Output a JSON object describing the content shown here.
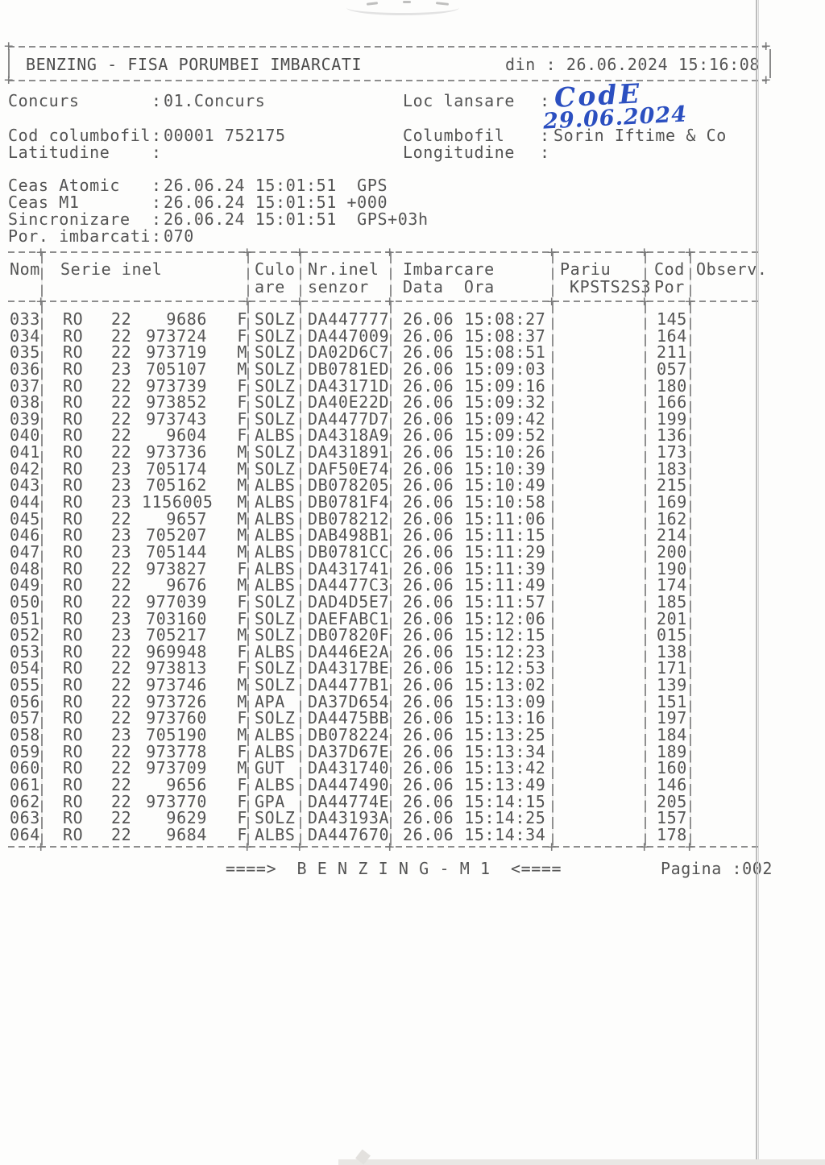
{
  "header": {
    "title": "BENZING - FISA PORUMBEI IMBARCATI",
    "printed_at": "din : 26.06.2024 15:16:08"
  },
  "glyphs": {
    "colon": ":",
    "plus": "+"
  },
  "meta": {
    "concurs_label": "Concurs",
    "concurs_value": "01.Concurs",
    "loc_lansare_label": "Loc lansare",
    "handwritten_code": "CodE",
    "handwritten_date": "29.06.2024",
    "cod_columbofil_label": "Cod columbofil",
    "cod_columbofil_value": "00001 752175",
    "columbofil_label": "Columbofil",
    "columbofil_value": "Sorin Iftime & Co",
    "latitudine_label": "Latitudine",
    "longitudine_label": "Longitudine",
    "ceas_atomic_label": "Ceas Atomic",
    "ceas_atomic_value": "26.06.24 15:01:51  GPS",
    "ceas_m1_label": "Ceas M1",
    "ceas_m1_value": "26.06.24 15:01:51 +000",
    "sincronizare_label": "Sincronizare",
    "sincronizare_value": "26.06.24 15:01:51  GPS+03h",
    "por_imbarcati_label": "Por. imbarcati",
    "por_imbarcati_value": "070"
  },
  "table": {
    "headers": {
      "nom": "Nom",
      "serie": "Serie inel",
      "culo_1": "Culo",
      "culo_2": "are",
      "senzor_1": "Nr.inel",
      "senzor_2": "senzor",
      "imb_1": "Imbarcare",
      "imb_2": "Data  Ora",
      "pariu_1": "Pariu",
      "pariu_2": "KPSTS2S3",
      "cod_1": "Cod",
      "cod_2": "Por",
      "observ": "Observ."
    },
    "rows": [
      [
        "033",
        "RO",
        "22",
        "9686",
        "F",
        "SOLZ",
        "DA447777",
        "26.06",
        "15:08:27",
        "",
        "145",
        ""
      ],
      [
        "034",
        "RO",
        "22",
        "973724",
        "F",
        "SOLZ",
        "DA447009",
        "26.06",
        "15:08:37",
        "",
        "164",
        ""
      ],
      [
        "035",
        "RO",
        "22",
        "973719",
        "M",
        "SOLZ",
        "DA02D6C7",
        "26.06",
        "15:08:51",
        "",
        "211",
        ""
      ],
      [
        "036",
        "RO",
        "23",
        "705107",
        "M",
        "SOLZ",
        "DB0781ED",
        "26.06",
        "15:09:03",
        "",
        "057",
        ""
      ],
      [
        "037",
        "RO",
        "22",
        "973739",
        "F",
        "SOLZ",
        "DA43171D",
        "26.06",
        "15:09:16",
        "",
        "180",
        ""
      ],
      [
        "038",
        "RO",
        "22",
        "973852",
        "F",
        "SOLZ",
        "DA40E22D",
        "26.06",
        "15:09:32",
        "",
        "166",
        ""
      ],
      [
        "039",
        "RO",
        "22",
        "973743",
        "F",
        "SOLZ",
        "DA4477D7",
        "26.06",
        "15:09:42",
        "",
        "199",
        ""
      ],
      [
        "040",
        "RO",
        "22",
        "9604",
        "F",
        "ALBS",
        "DA4318A9",
        "26.06",
        "15:09:52",
        "",
        "136",
        ""
      ],
      [
        "041",
        "RO",
        "22",
        "973736",
        "M",
        "SOLZ",
        "DA431891",
        "26.06",
        "15:10:26",
        "",
        "173",
        ""
      ],
      [
        "042",
        "RO",
        "23",
        "705174",
        "M",
        "SOLZ",
        "DAF50E74",
        "26.06",
        "15:10:39",
        "",
        "183",
        ""
      ],
      [
        "043",
        "RO",
        "23",
        "705162",
        "M",
        "ALBS",
        "DB078205",
        "26.06",
        "15:10:49",
        "",
        "215",
        ""
      ],
      [
        "044",
        "RO",
        "23",
        "1156005",
        "M",
        "ALBS",
        "DB0781F4",
        "26.06",
        "15:10:58",
        "",
        "169",
        ""
      ],
      [
        "045",
        "RO",
        "22",
        "9657",
        "M",
        "ALBS",
        "DB078212",
        "26.06",
        "15:11:06",
        "",
        "162",
        ""
      ],
      [
        "046",
        "RO",
        "23",
        "705207",
        "M",
        "ALBS",
        "DAB498B1",
        "26.06",
        "15:11:15",
        "",
        "214",
        ""
      ],
      [
        "047",
        "RO",
        "23",
        "705144",
        "M",
        "ALBS",
        "DB0781CC",
        "26.06",
        "15:11:29",
        "",
        "200",
        ""
      ],
      [
        "048",
        "RO",
        "22",
        "973827",
        "F",
        "ALBS",
        "DA431741",
        "26.06",
        "15:11:39",
        "",
        "190",
        ""
      ],
      [
        "049",
        "RO",
        "22",
        "9676",
        "M",
        "ALBS",
        "DA4477C3",
        "26.06",
        "15:11:49",
        "",
        "174",
        ""
      ],
      [
        "050",
        "RO",
        "22",
        "977039",
        "F",
        "SOLZ",
        "DAD4D5E7",
        "26.06",
        "15:11:57",
        "",
        "185",
        ""
      ],
      [
        "051",
        "RO",
        "23",
        "703160",
        "F",
        "SOLZ",
        "DAEFABC1",
        "26.06",
        "15:12:06",
        "",
        "201",
        ""
      ],
      [
        "052",
        "RO",
        "23",
        "705217",
        "M",
        "SOLZ",
        "DB07820F",
        "26.06",
        "15:12:15",
        "",
        "015",
        ""
      ],
      [
        "053",
        "RO",
        "22",
        "969948",
        "F",
        "ALBS",
        "DA446E2A",
        "26.06",
        "15:12:23",
        "",
        "138",
        ""
      ],
      [
        "054",
        "RO",
        "22",
        "973813",
        "F",
        "SOLZ",
        "DA4317BE",
        "26.06",
        "15:12:53",
        "",
        "171",
        ""
      ],
      [
        "055",
        "RO",
        "22",
        "973746",
        "M",
        "SOLZ",
        "DA4477B1",
        "26.06",
        "15:13:02",
        "",
        "139",
        ""
      ],
      [
        "056",
        "RO",
        "22",
        "973726",
        "M",
        "APA",
        "DA37D654",
        "26.06",
        "15:13:09",
        "",
        "151",
        ""
      ],
      [
        "057",
        "RO",
        "22",
        "973760",
        "F",
        "SOLZ",
        "DA4475BB",
        "26.06",
        "15:13:16",
        "",
        "197",
        ""
      ],
      [
        "058",
        "RO",
        "23",
        "705190",
        "M",
        "ALBS",
        "DB078224",
        "26.06",
        "15:13:25",
        "",
        "184",
        ""
      ],
      [
        "059",
        "RO",
        "22",
        "973778",
        "F",
        "ALBS",
        "DA37D67E",
        "26.06",
        "15:13:34",
        "",
        "189",
        ""
      ],
      [
        "060",
        "RO",
        "22",
        "973709",
        "M",
        "GUT",
        "DA431740",
        "26.06",
        "15:13:42",
        "",
        "160",
        ""
      ],
      [
        "061",
        "RO",
        "22",
        "9656",
        "F",
        "ALBS",
        "DA447490",
        "26.06",
        "15:13:49",
        "",
        "146",
        ""
      ],
      [
        "062",
        "RO",
        "22",
        "973770",
        "F",
        "GPA",
        "DA44774E",
        "26.06",
        "15:14:15",
        "",
        "205",
        ""
      ],
      [
        "063",
        "RO",
        "22",
        "9629",
        "F",
        "SOLZ",
        "DA43193A",
        "26.06",
        "15:14:25",
        "",
        "157",
        ""
      ],
      [
        "064",
        "RO",
        "22",
        "9684",
        "F",
        "ALBS",
        "DA447670",
        "26.06",
        "15:14:34",
        "",
        "178",
        ""
      ]
    ]
  },
  "footer": {
    "banner": "====>  B E N Z I N G - M 1  <====",
    "pagina": "Pagina :002"
  }
}
